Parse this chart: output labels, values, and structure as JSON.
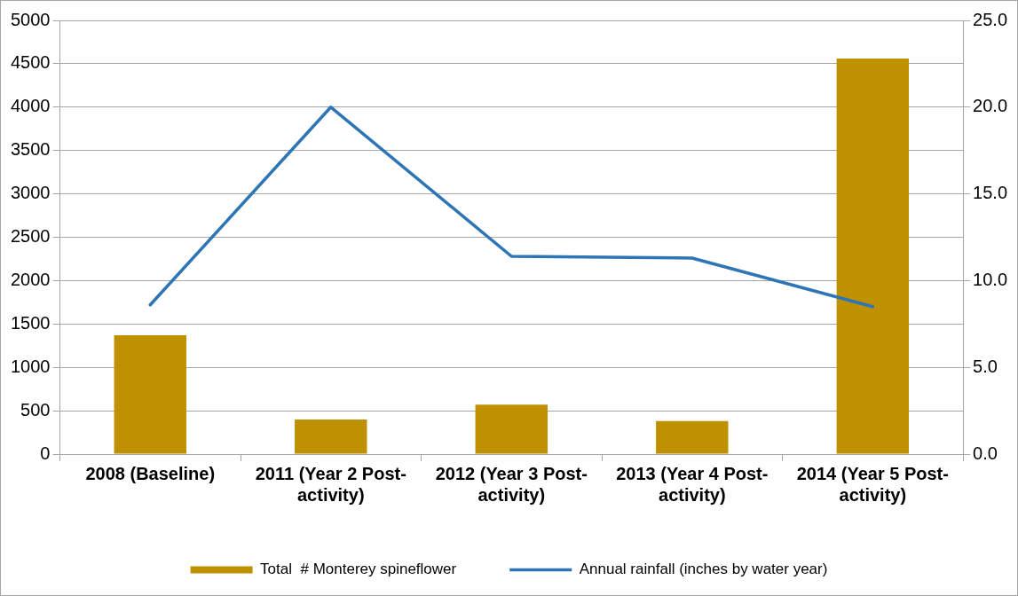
{
  "chart_data": {
    "type": "bar",
    "categories": [
      "2008 (Baseline)",
      "2011 (Year 2 Post-activity)",
      "2012 (Year 3 Post-activity)",
      "2013 (Year 4 Post-activity)",
      "2014 (Year 5 Post-activity)"
    ],
    "series": [
      {
        "name": "Total  # Monterey spineflower",
        "color": "#bf9000",
        "values": [
          1370,
          400,
          570,
          380,
          4560
        ]
      },
      {
        "name": "Annual rainfall (inches by water year)",
        "type": "line",
        "axis": "y2",
        "color": "#2e75b6",
        "values": [
          8.6,
          20.0,
          11.4,
          11.3,
          8.5
        ]
      }
    ],
    "ylim": [
      0,
      5000
    ],
    "yticks": [
      0,
      500,
      1000,
      1500,
      2000,
      2500,
      3000,
      3500,
      4000,
      4500,
      5000
    ],
    "y2lim": [
      0,
      25
    ],
    "y2ticks": [
      {
        "value": 0,
        "label": "0.0"
      },
      {
        "value": 5,
        "label": "5.0"
      },
      {
        "value": 10,
        "label": "10.0"
      },
      {
        "value": 15,
        "label": "15.0"
      },
      {
        "value": 20,
        "label": "20.0"
      },
      {
        "value": 25,
        "label": "25.0"
      }
    ],
    "grid": "y",
    "legend": "bottom",
    "marker": "none",
    "line_style": "solid"
  }
}
